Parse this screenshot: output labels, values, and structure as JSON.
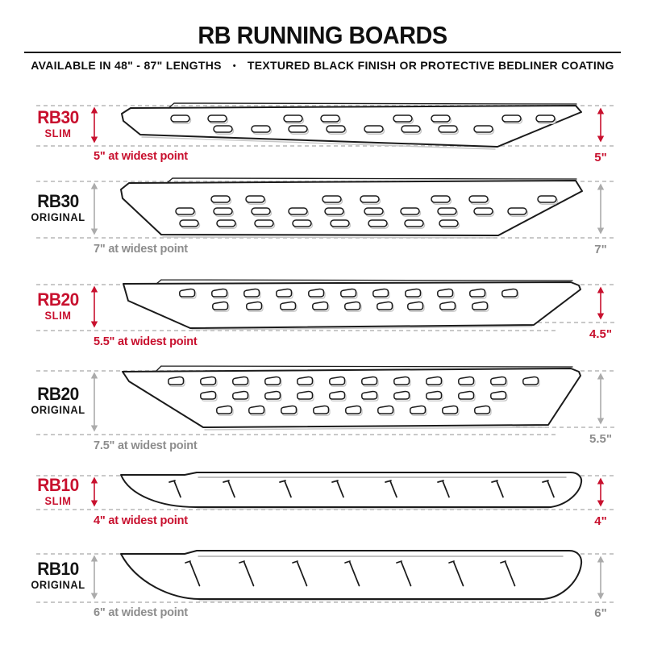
{
  "header": {
    "title": "RB RUNNING BOARDS",
    "subtitle": {
      "lengths": "AVAILABLE IN 48\" - 87\" LENGTHS",
      "separator": "•",
      "finish": "TEXTURED BLACK FINISH OR PROTECTIVE BEDLINER COATING"
    }
  },
  "colors": {
    "accent_red": "#c8102e",
    "muted_gray": "#8d8d8d",
    "arrow_gray": "#ababab",
    "dash_gray": "#c9c9c9",
    "line_black": "#1b1b1b"
  },
  "rows": [
    {
      "model": "RB30",
      "variant": "SLIM",
      "widest_note": "5\" at widest point",
      "end_measure": "5\""
    },
    {
      "model": "RB30",
      "variant": "ORIGINAL",
      "widest_note": "7\" at widest point",
      "end_measure": "7\""
    },
    {
      "model": "RB20",
      "variant": "SLIM",
      "widest_note": "5.5\" at widest point",
      "end_measure": "4.5\""
    },
    {
      "model": "RB20",
      "variant": "ORIGINAL",
      "widest_note": "7.5\" at widest point",
      "end_measure": "5.5\""
    },
    {
      "model": "RB10",
      "variant": "SLIM",
      "widest_note": "4\" at widest point",
      "end_measure": "4\""
    },
    {
      "model": "RB10",
      "variant": "ORIGINAL",
      "widest_note": "6\" at widest point",
      "end_measure": "6\""
    }
  ]
}
